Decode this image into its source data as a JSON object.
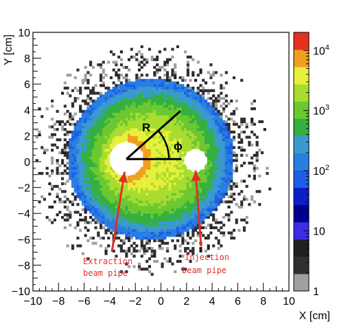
{
  "chart_data": {
    "type": "heatmap",
    "xlabel": "X [cm]",
    "ylabel": "Y [cm]",
    "xlim": [
      -10,
      10
    ],
    "ylim": [
      -10,
      10
    ],
    "x_ticks": [
      "−10",
      "−8",
      "−6",
      "−4",
      "−2",
      "0",
      "2",
      "4",
      "6",
      "8",
      "10"
    ],
    "y_ticks": [
      "−10",
      "−8",
      "−6",
      "−4",
      "−2",
      "0",
      "2",
      "4",
      "6",
      "8",
      "10"
    ],
    "color_scale": "log",
    "zlim": [
      1,
      20000
    ],
    "z_tick_values": [
      1,
      10,
      100,
      1000,
      10000
    ],
    "z_ticks": [
      {
        "base": "1",
        "exp": ""
      },
      {
        "base": "10",
        "exp": ""
      },
      {
        "base": "10",
        "exp": "2"
      },
      {
        "base": "10",
        "exp": "3"
      },
      {
        "base": "10",
        "exp": "4"
      }
    ],
    "palette": [
      "#a0a0a0",
      "#303030",
      "#202020",
      "#3c2de8",
      "#000090",
      "#0a1fc8",
      "#1e5ee6",
      "#2a7ee0",
      "#3a9ad0",
      "#35b040",
      "#6cc830",
      "#a8dc30",
      "#e8f03c",
      "#f0a020",
      "#e83020"
    ],
    "distribution": {
      "center": [
        -0.8,
        0.2
      ],
      "radius": 6.5,
      "holes": [
        {
          "center": [
            -2.7,
            0.2
          ],
          "radius": 1.3
        },
        {
          "center": [
            2.7,
            0.1
          ],
          "radius": 0.85
        }
      ]
    },
    "annotations": [
      {
        "id": "extraction",
        "text_lines": [
          "Extraction",
          "beam pipe"
        ],
        "arrow_to": [
          -3.0,
          -1.0
        ]
      },
      {
        "id": "injection",
        "text_lines": [
          "Injection",
          "beam pipe"
        ],
        "arrow_to": [
          2.7,
          -0.9
        ]
      }
    ],
    "geometry_labels": {
      "radius": "R",
      "angle": "ϕ"
    }
  }
}
